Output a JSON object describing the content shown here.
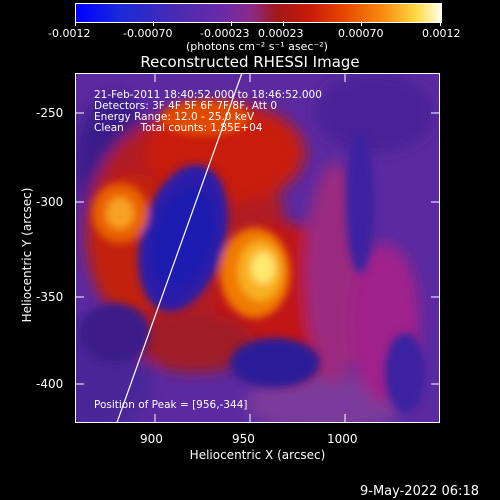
{
  "colorbar": {
    "tick_labels": [
      "-0.0012",
      "-0.00070",
      "-0.00023",
      "0.00023",
      "0.00070",
      "0.0012"
    ],
    "units_label": "(photons cm⁻² s⁻¹ asec⁻²)",
    "range": [
      -0.0012,
      0.0012
    ]
  },
  "plot": {
    "title": "Reconstructed RHESSI Image",
    "info_lines": [
      "21-Feb-2011 18:40:52.000 to 18:46:52.000",
      "Detectors: 3F 4F 5F 6F 7F 8F, Att 0",
      "Energy Range: 12.0 - 25.0 keV",
      "Clean     Total counts: 1.85E+04"
    ],
    "peak_label": "Position of Peak = [956,-344]",
    "xlabel": "Heliocentric X (arcsec)",
    "ylabel": "Heliocentric Y (arcsec)",
    "x_ticks": [
      "900",
      "950",
      "1000"
    ],
    "y_ticks": [
      "-250",
      "-300",
      "-350",
      "-400"
    ]
  },
  "footer": {
    "timestamp": "9-May-2022 06:18"
  },
  "colors": {
    "background": "#000000",
    "image_base": "#5b2aa0"
  }
}
